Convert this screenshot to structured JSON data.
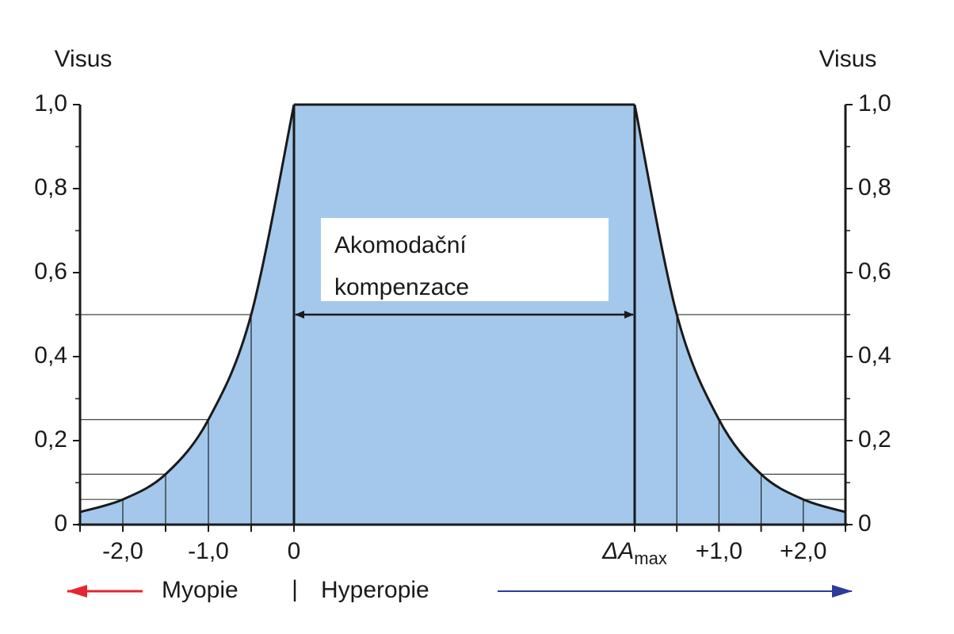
{
  "chart_data": {
    "type": "area",
    "y_label": "Visus",
    "y2_label": "Visus",
    "ylim": [
      0,
      1.0
    ],
    "yticks": [
      0,
      {
        "value": 0.2,
        "label": "0,2"
      },
      {
        "value": 0.4,
        "label": "0,4"
      },
      {
        "value": 0.6,
        "label": "0,6"
      },
      {
        "value": 0.8,
        "label": "0,8"
      },
      {
        "value": 1.0,
        "label": "1,0"
      }
    ],
    "y_minor_ticks": [
      0.1,
      0.3,
      0.5,
      0.7,
      0.9
    ],
    "xlim": [
      -2.5,
      0
    ],
    "xticks": [
      {
        "value": -2.0,
        "label": "-2,0"
      },
      {
        "value": -1.0,
        "label": "-1,0"
      },
      0
    ],
    "x2lim": [
      0,
      2.5
    ],
    "x2ticks": [
      {
        "value": 0,
        "label": "ΔA",
        "sub": "max"
      },
      {
        "value": 1.0,
        "label": "+1,0"
      },
      {
        "value": 2.0,
        "label": "+2,0"
      }
    ],
    "color": "#a3c8eb",
    "series": [
      {
        "name": "Myopie",
        "color": "#e3262f",
        "x": [
          -2.5,
          -2.0,
          -1.5,
          -1.0,
          -0.5,
          0
        ],
        "values": [
          0.03,
          0.06,
          0.12,
          0.25,
          0.5,
          1.0
        ]
      },
      {
        "name": "Hyperopie",
        "color": "#2d3b9c",
        "x": [
          0,
          0.5,
          1.0,
          1.5,
          2.0,
          2.5
        ],
        "values": [
          1.0,
          0.5,
          0.25,
          0.12,
          0.06,
          0.03
        ]
      }
    ],
    "separator": "|",
    "annotation": [
      "Akomodační",
      "kompenzace"
    ]
  }
}
